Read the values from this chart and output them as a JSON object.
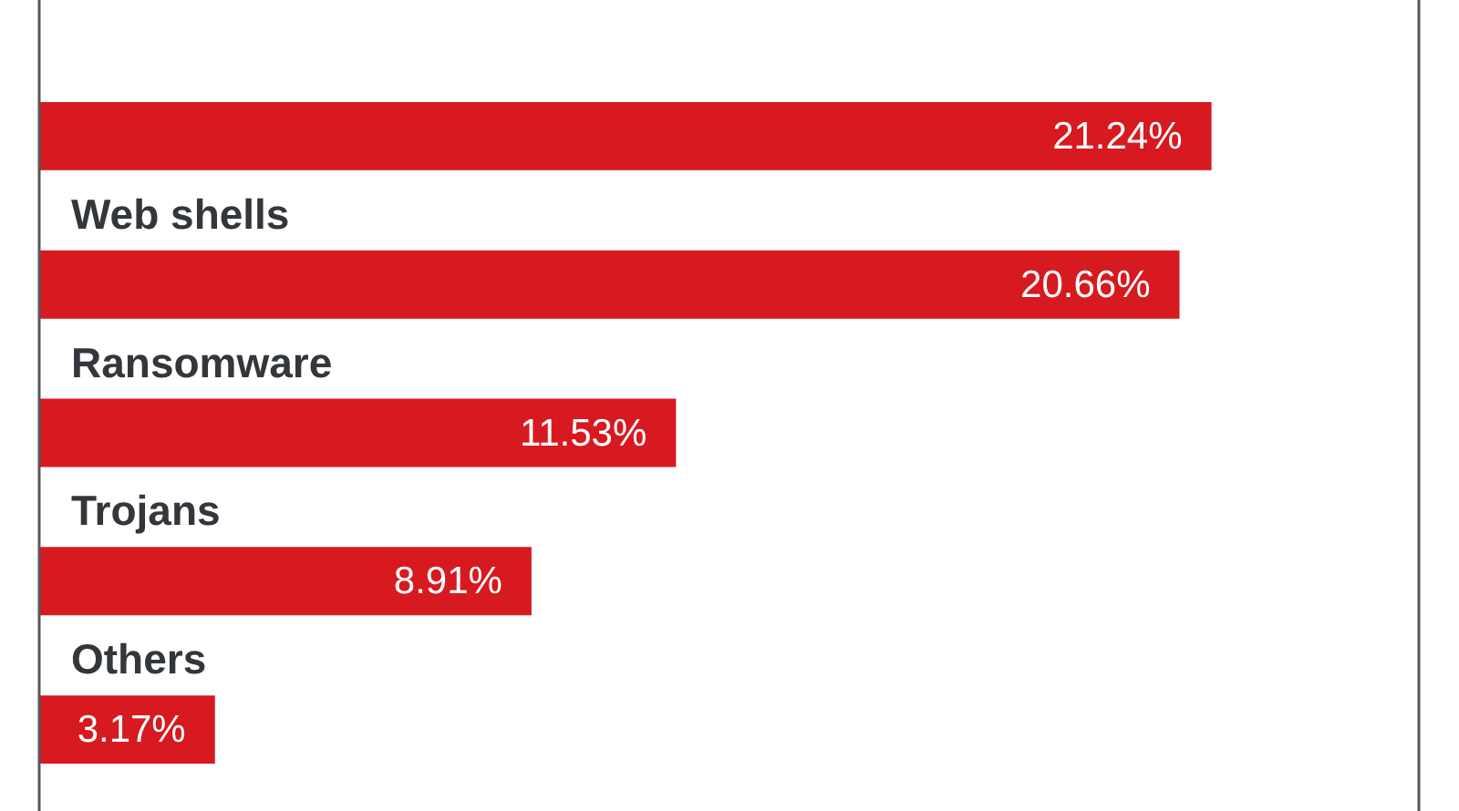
{
  "chart_data": {
    "type": "bar",
    "orientation": "horizontal",
    "categories": [
      null,
      "Web shells",
      "Ransomware",
      "Trojans",
      "Others"
    ],
    "values": [
      21.24,
      20.66,
      11.53,
      8.91,
      3.17
    ],
    "value_labels": [
      "21.24%",
      "20.66%",
      "11.53%",
      "8.91%",
      "3.17%"
    ],
    "color": "#d71920",
    "xlim": [
      0,
      25
    ],
    "tick_labels": false
  }
}
